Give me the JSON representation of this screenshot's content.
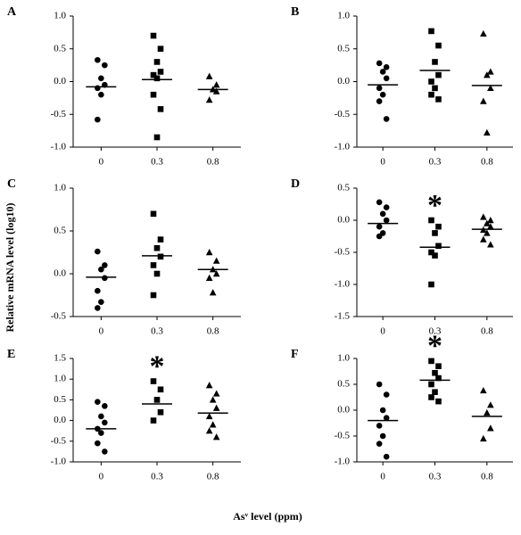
{
  "ylabel": "Relative mRNA level (log10)",
  "xlabel": "Asᵛ level (ppm)",
  "chart_data": [
    {
      "type": "dotplot",
      "label": "A",
      "categories": [
        "0",
        "0.3",
        "0.8"
      ],
      "markers": [
        "circle",
        "square",
        "triangle"
      ],
      "values": [
        [
          0.33,
          0.25,
          0.05,
          -0.05,
          -0.1,
          -0.2,
          -0.58
        ],
        [
          0.7,
          0.5,
          0.3,
          0.15,
          0.1,
          0.05,
          -0.2,
          -0.42,
          -0.85
        ],
        [
          0.08,
          -0.05,
          -0.12,
          -0.15,
          -0.28
        ]
      ],
      "means": [
        -0.08,
        0.03,
        -0.12
      ],
      "ylim": [
        -1.0,
        1.0
      ],
      "yticks": [
        {
          "value": -1.0,
          "label": "-1.0"
        },
        {
          "value": -0.5,
          "label": "-0.5"
        },
        {
          "value": 0,
          "label": "0.0"
        },
        {
          "value": 0.5,
          "label": "0.5"
        },
        {
          "value": 1.0,
          "label": "1.0"
        }
      ]
    },
    {
      "type": "dotplot",
      "label": "B",
      "categories": [
        "0",
        "0.3",
        "0.8"
      ],
      "markers": [
        "circle",
        "square",
        "triangle"
      ],
      "values": [
        [
          0.28,
          0.22,
          0.15,
          0.05,
          -0.1,
          -0.2,
          -0.3,
          -0.57
        ],
        [
          0.77,
          0.55,
          0.3,
          0.1,
          0.0,
          -0.1,
          -0.2,
          -0.27
        ],
        [
          0.73,
          0.15,
          0.1,
          -0.1,
          -0.3,
          -0.78
        ]
      ],
      "means": [
        -0.05,
        0.17,
        -0.06
      ],
      "ylim": [
        -1.0,
        1.0
      ],
      "yticks": [
        {
          "value": -1.0,
          "label": "-1.0"
        },
        {
          "value": -0.5,
          "label": "-0.5"
        },
        {
          "value": 0,
          "label": "0.0"
        },
        {
          "value": 0.5,
          "label": "0.5"
        },
        {
          "value": 1.0,
          "label": "1.0"
        }
      ]
    },
    {
      "type": "dotplot",
      "label": "C",
      "categories": [
        "0",
        "0.3",
        "0.8"
      ],
      "markers": [
        "circle",
        "square",
        "triangle"
      ],
      "values": [
        [
          0.26,
          0.1,
          0.05,
          -0.05,
          -0.2,
          -0.33,
          -0.4
        ],
        [
          0.7,
          0.4,
          0.3,
          0.2,
          0.1,
          0.0,
          -0.25
        ],
        [
          0.25,
          0.15,
          0.05,
          0.0,
          -0.05,
          -0.22
        ]
      ],
      "means": [
        -0.04,
        0.21,
        0.05
      ],
      "ylim": [
        -0.5,
        1.0
      ],
      "yticks": [
        {
          "value": -0.5,
          "label": "-0.5"
        },
        {
          "value": 0,
          "label": "0.0"
        },
        {
          "value": 0.5,
          "label": "0.5"
        },
        {
          "value": 1.0,
          "label": "1.0"
        }
      ]
    },
    {
      "type": "dotplot",
      "label": "D",
      "categories": [
        "0",
        "0.3",
        "0.8"
      ],
      "markers": [
        "circle",
        "square",
        "triangle"
      ],
      "values": [
        [
          0.28,
          0.2,
          0.1,
          0.0,
          -0.1,
          -0.2,
          -0.25
        ],
        [
          0.0,
          -0.1,
          -0.2,
          -0.4,
          -0.5,
          -0.55,
          -1.0
        ],
        [
          0.05,
          0.0,
          -0.05,
          -0.1,
          -0.15,
          -0.2,
          -0.3,
          -0.38
        ]
      ],
      "means": [
        -0.05,
        -0.42,
        -0.14
      ],
      "ylim": [
        -1.5,
        0.5
      ],
      "yticks": [
        {
          "value": -1.5,
          "label": "-1.5"
        },
        {
          "value": -1.0,
          "label": "-1.0"
        },
        {
          "value": -0.5,
          "label": "-0.5"
        },
        {
          "value": 0,
          "label": "0.0"
        },
        {
          "value": 0.5,
          "label": "0.5"
        }
      ],
      "annotations": [
        {
          "text": "*",
          "x": "0.3"
        }
      ]
    },
    {
      "type": "dotplot",
      "label": "E",
      "categories": [
        "0",
        "0.3",
        "0.8"
      ],
      "markers": [
        "circle",
        "square",
        "triangle"
      ],
      "values": [
        [
          0.45,
          0.35,
          0.1,
          -0.05,
          -0.2,
          -0.3,
          -0.55,
          -0.75
        ],
        [
          0.95,
          0.75,
          0.5,
          0.2,
          0.0
        ],
        [
          0.85,
          0.65,
          0.5,
          0.3,
          0.1,
          -0.1,
          -0.25,
          -0.4
        ]
      ],
      "means": [
        -0.2,
        0.4,
        0.18
      ],
      "ylim": [
        -1.0,
        1.5
      ],
      "yticks": [
        {
          "value": -1.0,
          "label": "-1.0"
        },
        {
          "value": -0.5,
          "label": "-0.5"
        },
        {
          "value": 0,
          "label": "0.0"
        },
        {
          "value": 0.5,
          "label": "0.5"
        },
        {
          "value": 1.0,
          "label": "1.0"
        },
        {
          "value": 1.5,
          "label": "1.5"
        }
      ],
      "annotations": [
        {
          "text": "*",
          "x": "0.3"
        }
      ]
    },
    {
      "type": "dotplot",
      "label": "F",
      "categories": [
        "0",
        "0.3",
        "0.8"
      ],
      "markers": [
        "circle",
        "square",
        "triangle"
      ],
      "values": [
        [
          0.5,
          0.3,
          0.0,
          -0.15,
          -0.3,
          -0.5,
          -0.65,
          -0.9
        ],
        [
          0.95,
          0.85,
          0.72,
          0.62,
          0.5,
          0.35,
          0.25,
          0.17
        ],
        [
          0.38,
          0.1,
          -0.05,
          -0.35,
          -0.55
        ]
      ],
      "means": [
        -0.2,
        0.58,
        -0.12
      ],
      "ylim": [
        -1.0,
        1.0
      ],
      "yticks": [
        {
          "value": -1.0,
          "label": "-1.0"
        },
        {
          "value": -0.5,
          "label": "-0.5"
        },
        {
          "value": 0,
          "label": "0.0"
        },
        {
          "value": 0.5,
          "label": "0.5"
        },
        {
          "value": 1.0,
          "label": "1.0"
        }
      ],
      "annotations": [
        {
          "text": "*",
          "x": "0.3"
        }
      ]
    }
  ]
}
